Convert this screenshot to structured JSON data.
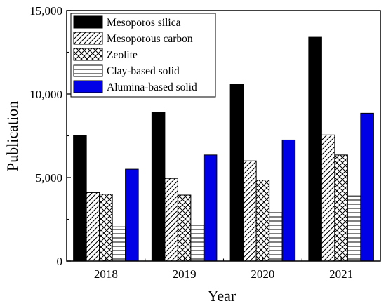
{
  "chart_data": {
    "type": "bar",
    "xlabel": "Year",
    "ylabel": "Publication",
    "categories": [
      "2018",
      "2019",
      "2020",
      "2021"
    ],
    "ylim": [
      0,
      15000
    ],
    "yticks": [
      0,
      5000,
      10000,
      15000
    ],
    "ytick_labels": [
      "0",
      "5,000",
      "10,000",
      "15,000"
    ],
    "legend_position": "top-left",
    "grid": false,
    "series": [
      {
        "name": "Mesoporos silica",
        "fill": "solid",
        "color": "#000000",
        "values": [
          7500,
          8900,
          10600,
          13400
        ]
      },
      {
        "name": "Mesoporous carbon",
        "fill": "diagonal-hatch",
        "color": "#000000",
        "values": [
          4100,
          4950,
          6000,
          7550
        ]
      },
      {
        "name": "Zeolite",
        "fill": "cross-hatch",
        "color": "#000000",
        "values": [
          4000,
          3950,
          4850,
          6350
        ]
      },
      {
        "name": "Clay-based solid",
        "fill": "white",
        "color": "#000000",
        "values": [
          2050,
          2150,
          2900,
          3900
        ]
      },
      {
        "name": "Alumina-based solid",
        "fill": "solid",
        "color": "#0000e6",
        "values": [
          5500,
          6350,
          7250,
          8850
        ]
      }
    ]
  }
}
